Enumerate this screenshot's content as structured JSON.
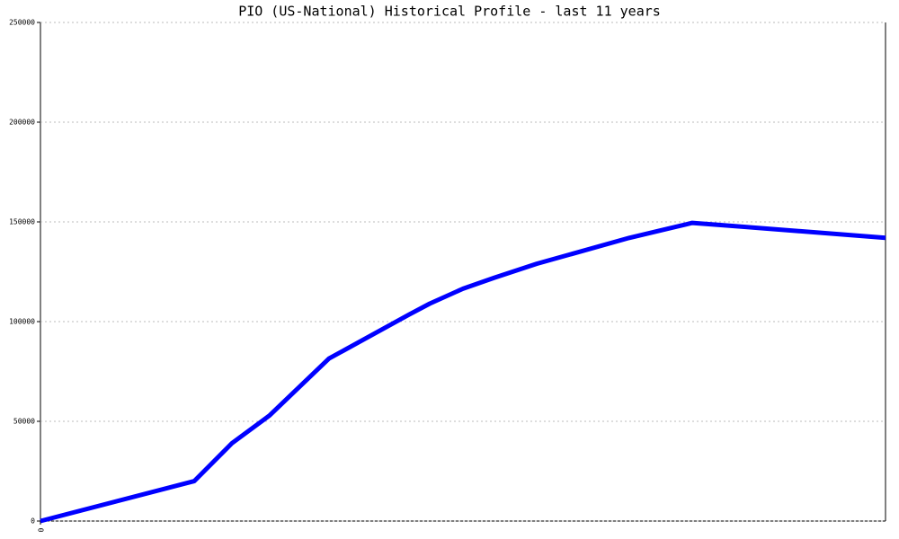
{
  "chart_data": {
    "type": "line",
    "title": "PIO (US-National) Historical Profile - last 11 years",
    "x": [
      0,
      171,
      213,
      255,
      321,
      410,
      433,
      470,
      505,
      552,
      655,
      725,
      755,
      940
    ],
    "series": [
      {
        "name": "PIO",
        "color": "#0000ff",
        "values": [
          0,
          20000,
          39000,
          53000,
          81500,
          103500,
          109000,
          116500,
          122000,
          129000,
          142000,
          149500,
          148500,
          142000
        ]
      }
    ],
    "xlim": [
      0,
      940
    ],
    "xticks": [
      0
    ],
    "ylim": [
      0,
      250000
    ],
    "yticks": [
      0,
      50000,
      100000,
      150000,
      200000,
      250000
    ],
    "grid": true
  }
}
